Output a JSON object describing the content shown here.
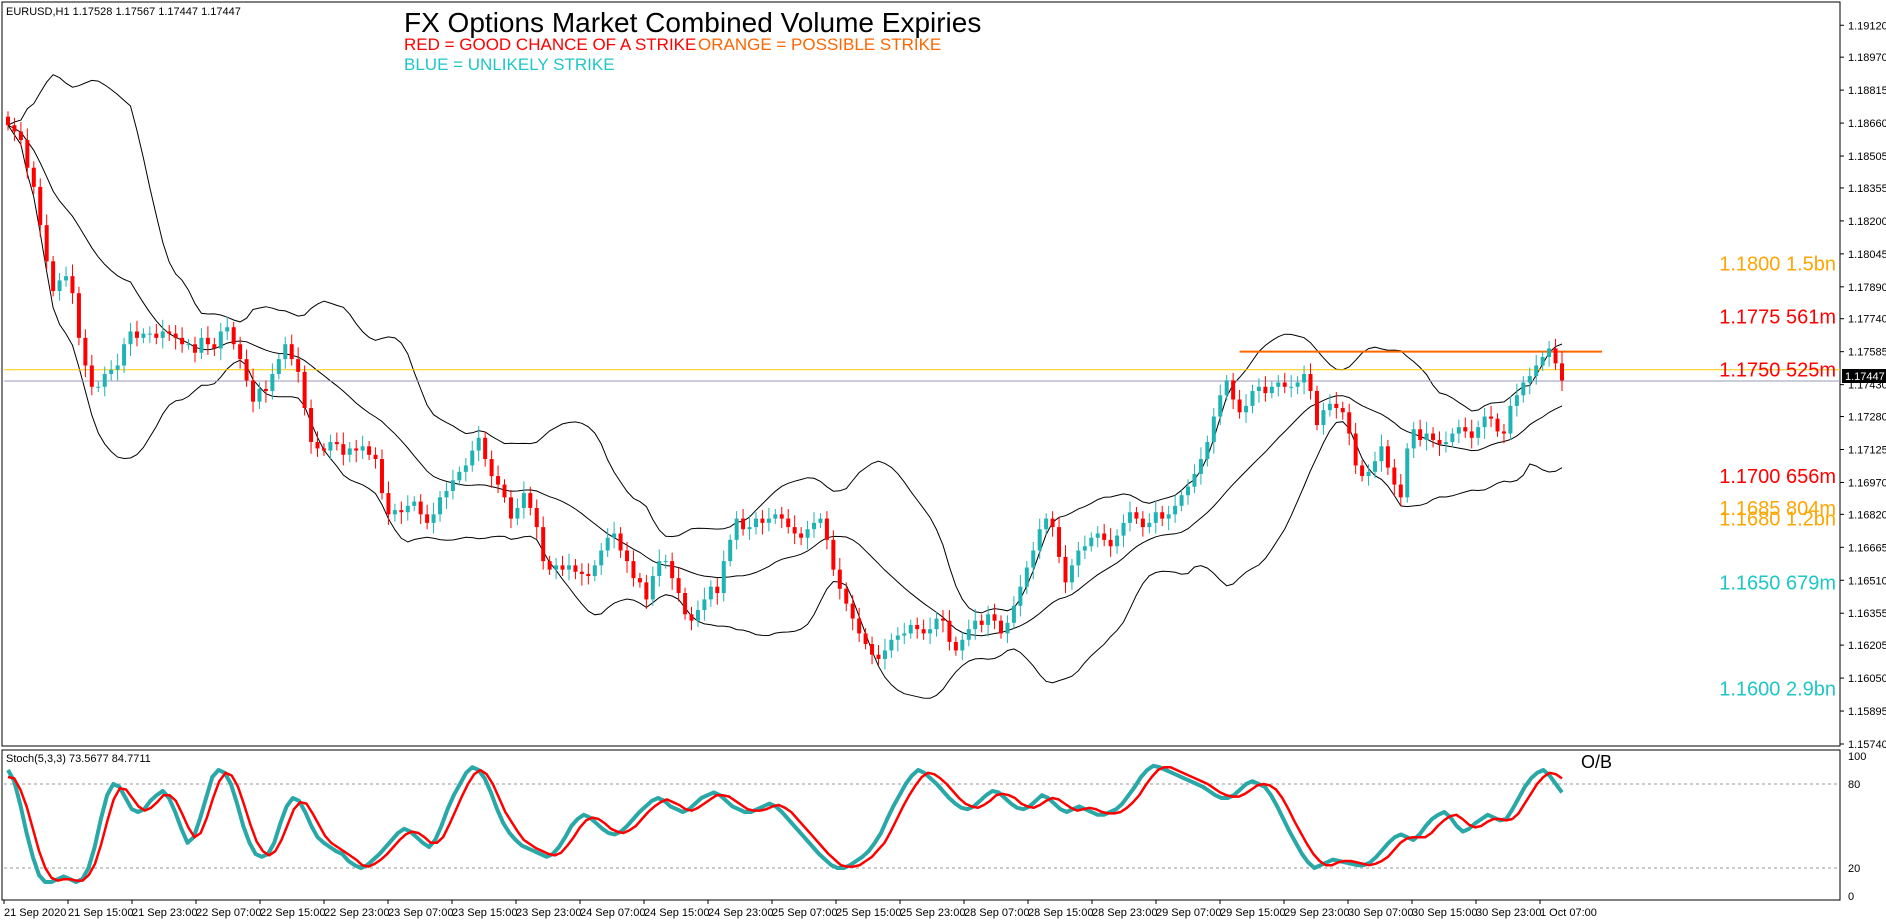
{
  "chart_data": [
    {
      "type": "candlestick",
      "symbol_info": "EURUSD,H1  1.17528 1.17567 1.17447 1.17447",
      "title": "FX Options Market Combined Volume Expiries",
      "legend": [
        {
          "text": "RED = GOOD CHANCE OF A STRIKE",
          "color": "#ff0000"
        },
        {
          "text": "ORANGE = POSSIBLE STRIKE",
          "color": "#ff6600"
        },
        {
          "text": "BLUE = UNLIKELY STRIKE",
          "color": "#1fc6c6"
        }
      ],
      "ylim": [
        1.1574,
        1.1922
      ],
      "y_ticks": [
        "1.19120",
        "1.18970",
        "1.18815",
        "1.18660",
        "1.18505",
        "1.18355",
        "1.18200",
        "1.18045",
        "1.17890",
        "1.17740",
        "1.17585",
        "1.17430",
        "1.17280",
        "1.17125",
        "1.16970",
        "1.16820",
        "1.16665",
        "1.16510",
        "1.16355",
        "1.16205",
        "1.16050",
        "1.15895",
        "1.15740"
      ],
      "x_ticks": [
        "21 Sep 2020",
        "21 Sep 15:00",
        "21 Sep 23:00",
        "22 Sep 07:00",
        "22 Sep 15:00",
        "22 Sep 23:00",
        "23 Sep 07:00",
        "23 Sep 15:00",
        "23 Sep 23:00",
        "24 Sep 07:00",
        "24 Sep 15:00",
        "24 Sep 23:00",
        "25 Sep 07:00",
        "25 Sep 15:00",
        "25 Sep 23:00",
        "28 Sep 07:00",
        "28 Sep 15:00",
        "28 Sep 23:00",
        "29 Sep 07:00",
        "29 Sep 15:00",
        "29 Sep 23:00",
        "30 Sep 07:00",
        "30 Sep 15:00",
        "30 Sep 23:00",
        "1 Oct 07:00"
      ],
      "current_price": "1.17447",
      "close_series": [
        1.1865,
        1.1862,
        1.1858,
        1.1845,
        1.1836,
        1.1818,
        1.1801,
        1.1787,
        1.1792,
        1.1794,
        1.1786,
        1.1765,
        1.1752,
        1.1742,
        1.1742,
        1.1748,
        1.175,
        1.1752,
        1.1762,
        1.1768,
        1.1765,
        1.1767,
        1.1767,
        1.1765,
        1.1768,
        1.1767,
        1.1765,
        1.1762,
        1.1762,
        1.1758,
        1.1765,
        1.1762,
        1.176,
        1.1768,
        1.177,
        1.1762,
        1.1755,
        1.1745,
        1.1735,
        1.1741,
        1.174,
        1.1748,
        1.1755,
        1.1762,
        1.1755,
        1.1749,
        1.1732,
        1.1716,
        1.1713,
        1.1712,
        1.1716,
        1.1715,
        1.171,
        1.1713,
        1.1712,
        1.1714,
        1.171,
        1.1708,
        1.1692,
        1.1682,
        1.1684,
        1.1683,
        1.1686,
        1.1688,
        1.1682,
        1.1678,
        1.1682,
        1.169,
        1.1693,
        1.1698,
        1.1702,
        1.1705,
        1.1712,
        1.1718,
        1.1708,
        1.17,
        1.1696,
        1.169,
        1.168,
        1.1685,
        1.1692,
        1.1685,
        1.1676,
        1.166,
        1.1656,
        1.1658,
        1.1656,
        1.1658,
        1.1655,
        1.1654,
        1.1653,
        1.1658,
        1.1665,
        1.1671,
        1.1673,
        1.1665,
        1.166,
        1.1652,
        1.165,
        1.1642,
        1.1653,
        1.166,
        1.166,
        1.1652,
        1.1645,
        1.1635,
        1.1632,
        1.1637,
        1.1642,
        1.1648,
        1.1645,
        1.166,
        1.167,
        1.168,
        1.1675,
        1.1676,
        1.168,
        1.1678,
        1.168,
        1.1682,
        1.168,
        1.1676,
        1.1673,
        1.1671,
        1.1675,
        1.1678,
        1.168,
        1.167,
        1.1656,
        1.1647,
        1.164,
        1.1633,
        1.1626,
        1.1621,
        1.1616,
        1.1614,
        1.1618,
        1.1623,
        1.1625,
        1.1626,
        1.163,
        1.1628,
        1.1626,
        1.1628,
        1.1633,
        1.1632,
        1.1622,
        1.1618,
        1.1623,
        1.1628,
        1.1632,
        1.163,
        1.1635,
        1.1632,
        1.1626,
        1.1631,
        1.1639,
        1.1648,
        1.1657,
        1.1665,
        1.1675,
        1.168,
        1.1676,
        1.1662,
        1.165,
        1.1658,
        1.1665,
        1.1667,
        1.1671,
        1.1673,
        1.167,
        1.1667,
        1.1672,
        1.1678,
        1.1683,
        1.168,
        1.1676,
        1.1678,
        1.1683,
        1.168,
        1.1682,
        1.1686,
        1.1691,
        1.1695,
        1.1701,
        1.1708,
        1.1716,
        1.1728,
        1.1738,
        1.1745,
        1.1736,
        1.173,
        1.1733,
        1.174,
        1.1742,
        1.1739,
        1.1742,
        1.1744,
        1.1742,
        1.1742,
        1.1744,
        1.1748,
        1.174,
        1.1724,
        1.1731,
        1.1734,
        1.1732,
        1.173,
        1.172,
        1.1705,
        1.17,
        1.1702,
        1.1707,
        1.1714,
        1.1704,
        1.1696,
        1.169,
        1.1713,
        1.1722,
        1.1717,
        1.172,
        1.1717,
        1.1715,
        1.1716,
        1.172,
        1.1723,
        1.1721,
        1.1718,
        1.1723,
        1.1728,
        1.1727,
        1.1721,
        1.172,
        1.1733,
        1.1738,
        1.1744,
        1.1747,
        1.1752,
        1.1756,
        1.176,
        1.1753,
        1.1745
      ],
      "annotations": [
        {
          "text": "1.1800 1.5bn",
          "color": "#ffa500",
          "price": 1.18
        },
        {
          "text": "1.1775 561m",
          "color": "#ff0000",
          "price": 1.1775
        },
        {
          "text": "1.1750 525m",
          "color": "#ff0000",
          "price": 1.175
        },
        {
          "text": "1.1700 656m",
          "color": "#ff0000",
          "price": 1.17
        },
        {
          "text": "1.1685 804m",
          "color": "#ffa500",
          "price": 1.1685
        },
        {
          "text": "1.1680 1.2bn",
          "color": "#ffa500",
          "price": 1.168
        },
        {
          "text": "1.1650 679m",
          "color": "#1fc6c6",
          "price": 1.165
        },
        {
          "text": "1.1600 2.9bn",
          "color": "#1fc6c6",
          "price": 1.16
        }
      ],
      "horizontal_lines": [
        {
          "price": 1.17585,
          "color": "#ff6600",
          "name": "resistance-line"
        },
        {
          "price": 1.175,
          "color": "#ffcc00",
          "name": "strike-line"
        },
        {
          "price": 1.17447,
          "color": "#9999bb",
          "name": "price-line"
        }
      ],
      "colors": {
        "bull": "#1fb3b3",
        "bear": "#ff0000"
      }
    },
    {
      "type": "line",
      "indicator_info": "Stoch(5,3,3) 73.5677 84.7711",
      "ylim": [
        0,
        100
      ],
      "y_ticks": [
        "100",
        "80",
        "20",
        "0"
      ],
      "levels": [
        80,
        20
      ],
      "annotation": "O/B",
      "series": [
        {
          "name": "%K",
          "color": "#2aa7a7",
          "values": [
            90,
            82,
            65,
            45,
            28,
            15,
            10,
            10,
            12,
            14,
            12,
            10,
            12,
            20,
            35,
            55,
            72,
            80,
            78,
            70,
            62,
            60,
            62,
            68,
            72,
            75,
            70,
            60,
            48,
            38,
            42,
            55,
            70,
            85,
            90,
            88,
            80,
            66,
            50,
            38,
            30,
            28,
            30,
            38,
            52,
            64,
            70,
            68,
            60,
            50,
            42,
            38,
            35,
            32,
            30,
            25,
            22,
            20,
            22,
            26,
            30,
            35,
            40,
            45,
            48,
            46,
            42,
            38,
            35,
            40,
            50,
            62,
            72,
            80,
            88,
            92,
            90,
            84,
            74,
            62,
            52,
            45,
            40,
            36,
            34,
            32,
            30,
            28,
            30,
            35,
            42,
            50,
            55,
            58,
            56,
            52,
            48,
            45,
            44,
            46,
            50,
            55,
            60,
            64,
            68,
            70,
            68,
            64,
            62,
            60,
            62,
            66,
            70,
            72,
            74,
            72,
            68,
            64,
            62,
            60,
            60,
            62,
            64,
            66,
            64,
            60,
            55,
            50,
            45,
            40,
            35,
            30,
            26,
            22,
            20,
            20,
            22,
            25,
            28,
            32,
            38,
            45,
            55,
            64,
            72,
            80,
            86,
            90,
            88,
            84,
            80,
            75,
            70,
            66,
            63,
            62,
            64,
            68,
            72,
            75,
            74,
            70,
            66,
            63,
            62,
            64,
            68,
            72,
            70,
            66,
            62,
            60,
            62,
            64,
            62,
            60,
            58,
            58,
            60,
            62,
            66,
            72,
            78,
            85,
            90,
            93,
            92,
            90,
            88,
            86,
            84,
            82,
            80,
            78,
            75,
            72,
            70,
            70,
            72,
            76,
            80,
            82,
            80,
            78,
            72,
            64,
            55,
            46,
            38,
            30,
            24,
            20,
            22,
            24,
            26,
            25,
            24,
            23,
            22,
            22,
            24,
            28,
            33,
            38,
            42,
            44,
            42,
            40,
            44,
            50,
            55,
            58,
            60,
            56,
            50,
            46,
            48,
            52,
            55,
            58,
            56,
            54,
            55,
            62,
            70,
            78,
            84,
            88,
            90,
            86,
            80,
            74
          ]
        },
        {
          "name": "%D",
          "color": "#ff0000",
          "values": [
            85,
            84,
            76,
            64,
            48,
            32,
            20,
            13,
            11,
            12,
            12,
            11,
            11,
            15,
            23,
            37,
            54,
            69,
            77,
            76,
            70,
            64,
            61,
            63,
            67,
            72,
            72,
            68,
            59,
            49,
            42,
            45,
            56,
            70,
            82,
            88,
            86,
            78,
            65,
            51,
            39,
            32,
            29,
            32,
            40,
            51,
            62,
            67,
            66,
            59,
            51,
            43,
            38,
            35,
            32,
            29,
            26,
            22,
            21,
            23,
            26,
            30,
            35,
            40,
            44,
            46,
            45,
            42,
            38,
            38,
            42,
            51,
            61,
            71,
            80,
            87,
            90,
            87,
            80,
            70,
            60,
            53,
            46,
            40,
            37,
            34,
            32,
            30,
            29,
            31,
            36,
            42,
            49,
            54,
            56,
            55,
            52,
            48,
            46,
            45,
            47,
            50,
            55,
            60,
            64,
            67,
            69,
            67,
            65,
            62,
            61,
            63,
            66,
            69,
            72,
            72,
            71,
            68,
            65,
            62,
            61,
            61,
            62,
            64,
            65,
            63,
            60,
            55,
            50,
            45,
            40,
            35,
            30,
            26,
            22,
            21,
            21,
            22,
            25,
            28,
            33,
            38,
            46,
            55,
            64,
            72,
            79,
            85,
            88,
            87,
            84,
            80,
            75,
            70,
            66,
            64,
            63,
            65,
            68,
            72,
            73,
            72,
            70,
            66,
            64,
            63,
            65,
            68,
            70,
            69,
            66,
            63,
            61,
            62,
            63,
            62,
            60,
            59,
            59,
            60,
            63,
            67,
            72,
            79,
            85,
            90,
            92,
            92,
            90,
            88,
            86,
            84,
            82,
            80,
            77,
            74,
            72,
            71,
            71,
            73,
            76,
            79,
            80,
            79,
            76,
            70,
            62,
            53,
            45,
            37,
            30,
            25,
            22,
            22,
            24,
            25,
            25,
            24,
            23,
            22,
            23,
            25,
            28,
            33,
            38,
            41,
            42,
            42,
            42,
            45,
            50,
            54,
            57,
            58,
            55,
            51,
            49,
            50,
            53,
            55,
            55,
            54,
            55,
            59,
            66,
            73,
            80,
            85,
            88,
            87,
            84
          ]
        }
      ]
    }
  ]
}
